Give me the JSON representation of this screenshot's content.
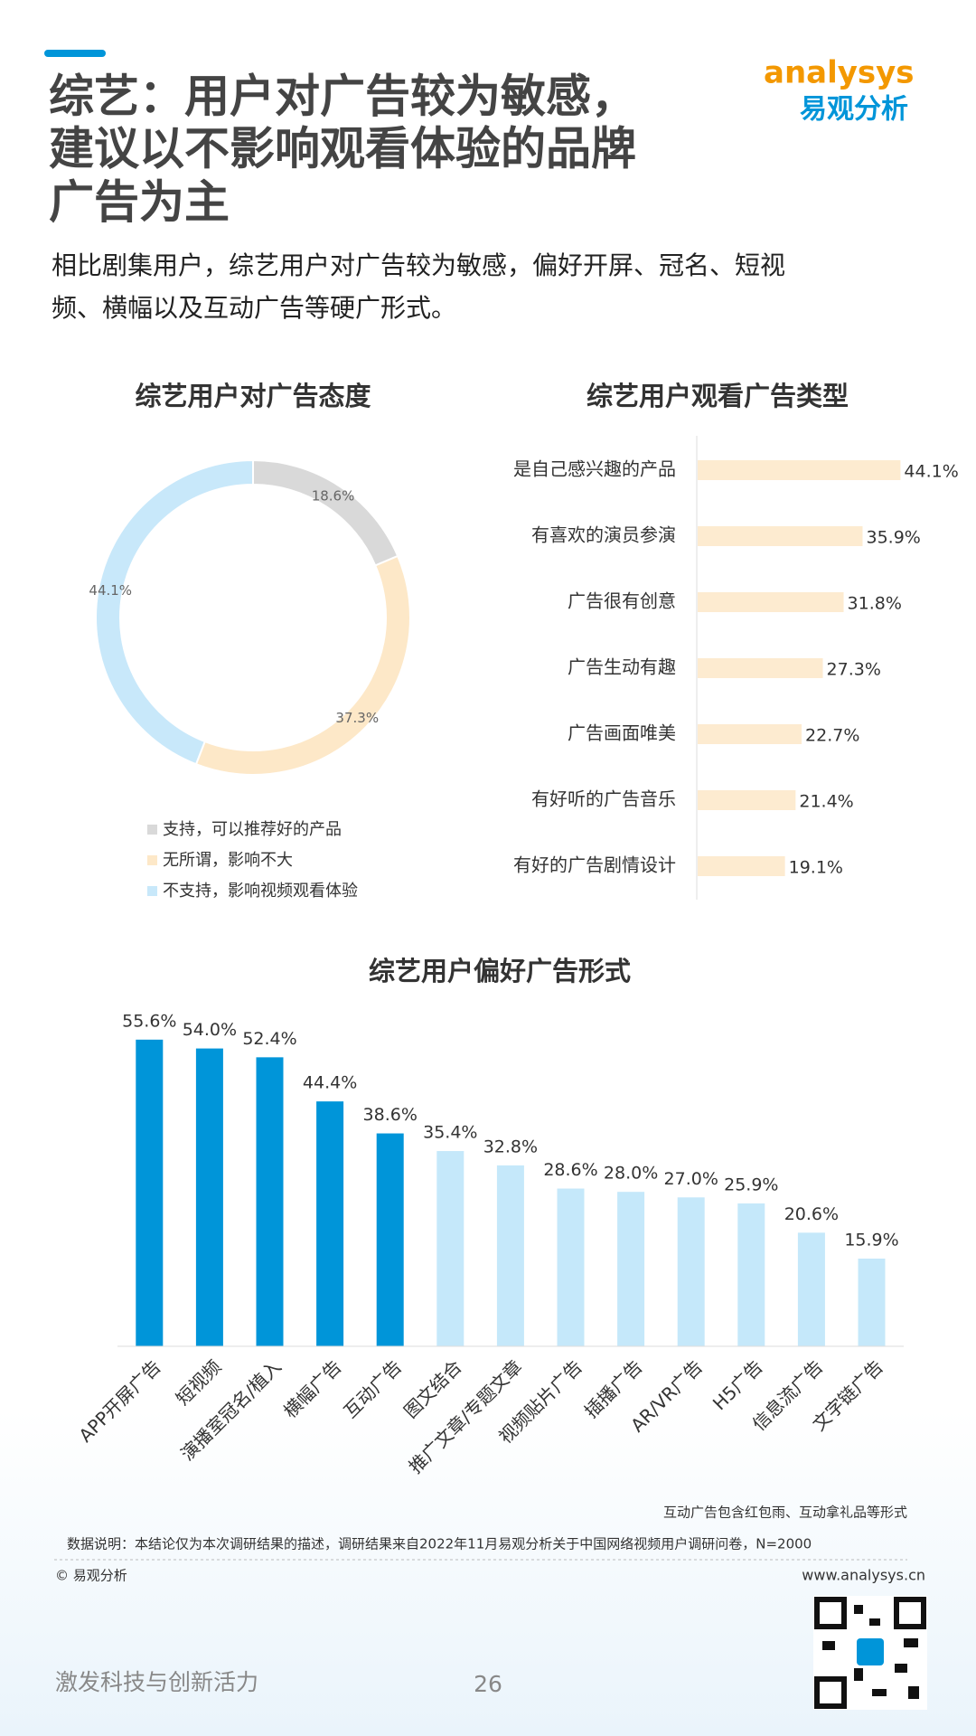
{
  "header": {
    "title_lines": [
      "综艺：用户对广告较为敏感，",
      "建议以不影响观看体验的品牌",
      "广告为主"
    ],
    "subtitle_lines": [
      "相比剧集用户，综艺用户对广告较为敏感，偏好开屏、冠名、短视",
      "频、横幅以及互动广告等硬广形式。"
    ],
    "logo_text": "analysys",
    "logo_cn": "易观分析"
  },
  "chart_data": [
    {
      "type": "pie",
      "title": "综艺用户对广告态度",
      "categories": [
        "支持，可以推荐好的产品",
        "无所谓，影响不大",
        "不支持，影响视频观看体验"
      ],
      "values": [
        18.6,
        37.3,
        44.1
      ],
      "value_labels": [
        "18.6%",
        "37.3%",
        "44.1%"
      ],
      "colors": [
        "#d9d9d9",
        "#fde8c8",
        "#c8e8fa"
      ]
    },
    {
      "type": "hbar",
      "title": "综艺用户观看广告类型",
      "categories": [
        "是自己感兴趣的产品",
        "有喜欢的演员参演",
        "广告很有创意",
        "广告生动有趣",
        "广告画面唯美",
        "有好听的广告音乐",
        "有好的广告剧情设计"
      ],
      "values": [
        44.1,
        35.9,
        31.8,
        27.3,
        22.7,
        21.4,
        19.1
      ],
      "value_labels": [
        "44.1%",
        "35.9%",
        "31.8%",
        "27.3%",
        "22.7%",
        "21.4%",
        "19.1%"
      ],
      "color": "#fdebd0",
      "xlim": [
        0,
        45
      ]
    },
    {
      "type": "bar",
      "title": "综艺用户偏好广告形式",
      "categories": [
        "APP开屏广告",
        "短视频",
        "演播室冠名/植入",
        "横幅广告",
        "互动广告",
        "图文结合",
        "推广文章/专题文章",
        "视频贴片广告",
        "插播广告",
        "AR/VR广告",
        "H5广告",
        "信息流广告",
        "文字链广告"
      ],
      "values": [
        55.6,
        54.0,
        52.4,
        44.4,
        38.6,
        35.4,
        32.8,
        28.6,
        28.0,
        27.0,
        25.9,
        20.6,
        15.9
      ],
      "value_labels": [
        "55.6%",
        "54.0%",
        "52.4%",
        "44.4%",
        "38.6%",
        "35.4%",
        "32.8%",
        "28.6%",
        "28.0%",
        "27.0%",
        "25.9%",
        "20.6%",
        "15.9%"
      ],
      "colors": [
        "#0095d9",
        "#0095d9",
        "#0095d9",
        "#0095d9",
        "#0095d9",
        "#c5e8fa",
        "#c5e8fa",
        "#c5e8fa",
        "#c5e8fa",
        "#c5e8fa",
        "#c5e8fa",
        "#c5e8fa",
        "#c5e8fa"
      ],
      "ylim": [
        0,
        60
      ]
    }
  ],
  "footer": {
    "note": "互动广告包含红包雨、互动拿礼品等形式",
    "source": "数据说明：本结论仅为本次调研结果的描述，调研结果来自2022年11月易观分析关于中国网络视频用户调研问卷，N=2000",
    "copyright": "© 易观分析",
    "website": "www.analysys.cn",
    "slogan": "激发科技与创新活力",
    "page_number": "26"
  }
}
